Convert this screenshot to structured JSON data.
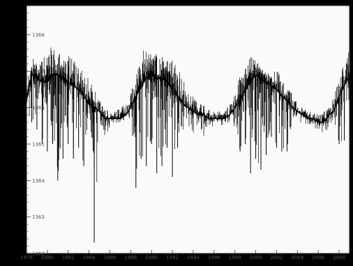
{
  "chart_data": {
    "type": "line",
    "title": "",
    "xlabel": "",
    "ylabel": "",
    "grid": false,
    "series_color": "#000000",
    "background": "#ffffff",
    "frame_color": "#000000",
    "ylim": [
      1362.0,
      1368.8
    ],
    "yticks": [
      {
        "label": "1368",
        "value": 1368.0
      },
      {
        "label": "1367",
        "value": 1367.0
      },
      {
        "label": "1366",
        "value": 1366.0
      },
      {
        "label": "1365",
        "value": 1365.0
      },
      {
        "label": "1364",
        "value": 1364.0
      },
      {
        "label": "1363",
        "value": 1363.0
      },
      {
        "label": "1362",
        "value": 1362.0
      }
    ],
    "xlim": [
      1978.0,
      2009.0
    ],
    "xticks": [
      {
        "label": "1978",
        "value": 1978
      },
      {
        "label": "1980",
        "value": 1980
      },
      {
        "label": "1982",
        "value": 1982
      },
      {
        "label": "1984",
        "value": 1984
      },
      {
        "label": "1986",
        "value": 1986
      },
      {
        "label": "1988",
        "value": 1988
      },
      {
        "label": "1990",
        "value": 1990
      },
      {
        "label": "1992",
        "value": 1992
      },
      {
        "label": "1994",
        "value": 1994
      },
      {
        "label": "1996",
        "value": 1996
      },
      {
        "label": "1998",
        "value": 1998
      },
      {
        "label": "2000",
        "value": 2000
      },
      {
        "label": "2002",
        "value": 2002
      },
      {
        "label": "2004",
        "value": 2004
      },
      {
        "label": "2006",
        "value": 2006
      },
      {
        "label": "2008",
        "value": 2008
      }
    ],
    "series": [
      {
        "x": [
          1978.0,
          1978.5,
          1979.0,
          1979.5,
          1980.0,
          1980.5,
          1981.0,
          1981.5,
          1982.0,
          1982.5,
          1983.0,
          1983.5,
          1984.0,
          1984.5,
          1985.0,
          1985.5,
          1986.0,
          1986.5,
          1987.0,
          1987.5,
          1988.0,
          1988.5,
          1989.0,
          1989.5,
          1990.0,
          1990.5,
          1991.0,
          1991.5,
          1992.0,
          1992.5,
          1993.0,
          1993.5,
          1994.0,
          1994.5,
          1995.0,
          1995.5,
          1996.0,
          1996.5,
          1997.0,
          1997.5,
          1998.0,
          1998.5,
          1999.0,
          1999.5,
          2000.0,
          2000.5,
          2001.0,
          2001.5,
          2002.0,
          2002.5,
          2003.0,
          2003.5,
          2004.0,
          2004.5,
          2005.0,
          2005.5,
          2006.0,
          2006.5,
          2007.0,
          2007.5,
          2008.0,
          2008.5,
          2009.0
        ],
        "mean": [
          1366.2,
          1366.9,
          1366.8,
          1366.7,
          1366.7,
          1366.9,
          1366.9,
          1366.8,
          1366.7,
          1366.6,
          1366.5,
          1366.3,
          1366.1,
          1366.0,
          1365.9,
          1365.7,
          1365.7,
          1365.7,
          1365.7,
          1365.8,
          1366.0,
          1366.3,
          1366.6,
          1366.8,
          1366.9,
          1366.8,
          1366.8,
          1366.7,
          1366.5,
          1366.3,
          1366.1,
          1366.0,
          1365.9,
          1365.8,
          1365.8,
          1365.7,
          1365.7,
          1365.7,
          1365.7,
          1365.8,
          1366.0,
          1366.2,
          1366.5,
          1366.7,
          1366.9,
          1366.8,
          1366.7,
          1366.6,
          1366.5,
          1366.3,
          1366.2,
          1366.0,
          1365.9,
          1365.8,
          1365.7,
          1365.7,
          1365.6,
          1365.6,
          1365.8,
          1365.9,
          1366.3,
          1366.6,
          1366.9
        ],
        "high": [
          1366.6,
          1367.4,
          1367.2,
          1367.3,
          1367.6,
          1367.8,
          1367.6,
          1367.4,
          1367.5,
          1367.3,
          1367.2,
          1366.9,
          1366.8,
          1366.5,
          1366.2,
          1366.0,
          1365.9,
          1365.9,
          1366.0,
          1366.1,
          1366.4,
          1366.9,
          1367.4,
          1367.8,
          1367.6,
          1367.5,
          1367.4,
          1367.3,
          1367.3,
          1367.1,
          1366.8,
          1366.5,
          1366.3,
          1366.1,
          1366.1,
          1366.0,
          1365.9,
          1365.9,
          1366.0,
          1366.1,
          1366.4,
          1366.9,
          1367.1,
          1367.4,
          1367.3,
          1367.2,
          1367.0,
          1366.9,
          1367.1,
          1366.8,
          1366.6,
          1366.4,
          1366.2,
          1366.0,
          1365.9,
          1365.9,
          1365.8,
          1365.9,
          1366.0,
          1366.3,
          1366.8,
          1367.2,
          1367.6
        ],
        "low": [
          1365.2,
          1365.6,
          1365.4,
          1365.0,
          1364.8,
          1365.0,
          1364.0,
          1364.6,
          1365.0,
          1364.6,
          1364.9,
          1364.4,
          1365.6,
          1362.3,
          1365.5,
          1365.1,
          1365.5,
          1365.6,
          1365.5,
          1365.6,
          1365.6,
          1363.8,
          1364.6,
          1364.4,
          1365.0,
          1364.2,
          1364.4,
          1364.9,
          1364.1,
          1364.9,
          1365.3,
          1365.5,
          1365.3,
          1365.6,
          1365.2,
          1365.5,
          1365.4,
          1365.5,
          1365.5,
          1365.6,
          1365.3,
          1364.8,
          1365.0,
          1364.2,
          1364.6,
          1364.3,
          1364.7,
          1365.2,
          1364.9,
          1364.8,
          1364.8,
          1365.4,
          1365.3,
          1365.6,
          1365.1,
          1365.3,
          1365.4,
          1365.3,
          1365.4,
          1365.6,
          1365.0,
          1365.1,
          1365.3
        ]
      }
    ]
  }
}
